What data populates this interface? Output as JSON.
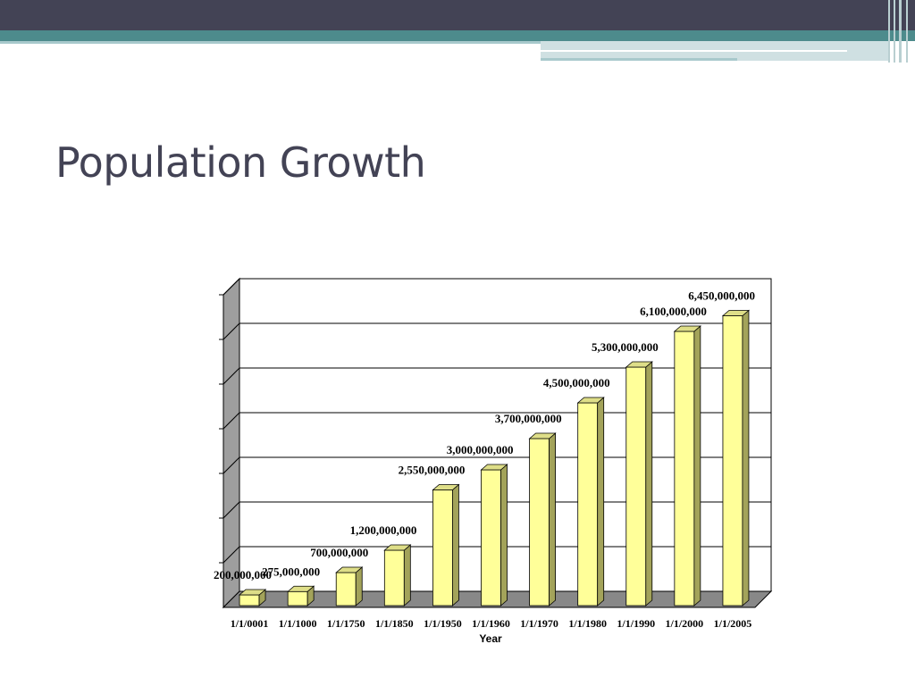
{
  "slide": {
    "title": "Population Growth"
  },
  "theme": {
    "header_dark": "#434355",
    "header_teal": "#4d8b8c",
    "bar_face": "#ffff99",
    "bar_side": "#a3a35a",
    "bar_top": "#dede88",
    "wall": "#9e9e9e",
    "floor": "#888888"
  },
  "chart_data": {
    "type": "bar",
    "style": "3d-column",
    "xlabel": "Year",
    "ylabel": "",
    "ylim": [
      0,
      7000000000
    ],
    "grid": true,
    "legend": "none",
    "categories": [
      "1/1/0001",
      "1/1/1000",
      "1/1/1750",
      "1/1/1850",
      "1/1/1950",
      "1/1/1960",
      "1/1/1970",
      "1/1/1980",
      "1/1/1990",
      "1/1/2000",
      "1/1/2005"
    ],
    "values": [
      200000000,
      275000000,
      700000000,
      1200000000,
      2550000000,
      3000000000,
      3700000000,
      4500000000,
      5300000000,
      6100000000,
      6450000000
    ],
    "data_labels": [
      "200,000,000",
      "275,000,000",
      "700,000,000",
      "1,200,000,000",
      "2,550,000,000",
      "3,000,000,000",
      "3,700,000,000",
      "4,500,000,000",
      "5,300,000,000",
      "6,100,000,000",
      "6,450,000,000"
    ]
  }
}
